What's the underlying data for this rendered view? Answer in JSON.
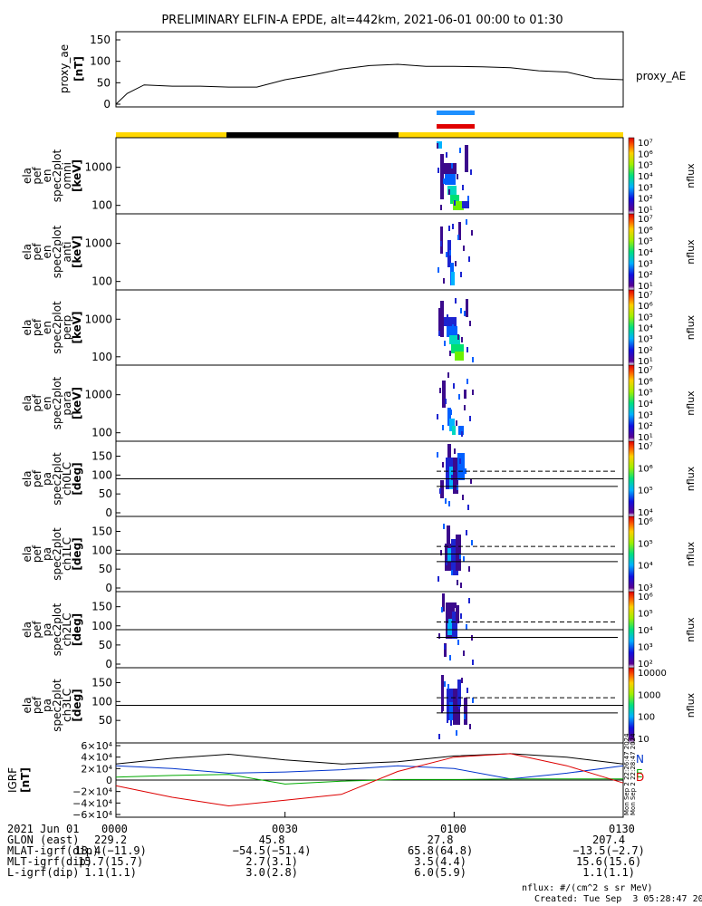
{
  "title": "PRELIMINARY ELFIN-A EPDE, alt=442km, 2021-06-01 00:00 to 01:30",
  "time_axis": {
    "ticks": [
      "0000",
      "0030",
      "0100",
      "0130"
    ],
    "date_label": "2021 Jun 01"
  },
  "panels": {
    "proxy_ae": {
      "ylabel": [
        "proxy_ae",
        "[nT]"
      ],
      "legend": "proxy_AE",
      "yticks": [
        "0",
        "50",
        "100",
        "150"
      ]
    },
    "energy_panels": [
      {
        "ylabel": [
          "ela",
          "pef",
          "en",
          "spec2plot",
          "omni",
          "[keV]"
        ],
        "yticks": [
          "100",
          "1000"
        ]
      },
      {
        "ylabel": [
          "ela",
          "pef",
          "en",
          "spec2plot",
          "anti",
          "[keV]"
        ],
        "yticks": [
          "100",
          "1000"
        ]
      },
      {
        "ylabel": [
          "ela",
          "pef",
          "en",
          "spec2plot",
          "perp",
          "[keV]"
        ],
        "yticks": [
          "100",
          "1000"
        ]
      },
      {
        "ylabel": [
          "ela",
          "pef",
          "en",
          "spec2plot",
          "para",
          "[keV]"
        ],
        "yticks": [
          "100",
          "1000"
        ]
      }
    ],
    "pa_panels": [
      {
        "ylabel": [
          "ela",
          "pef",
          "pa",
          "spec2plot",
          "ch0LC",
          "[deg]"
        ],
        "yticks": [
          "0",
          "50",
          "100",
          "150"
        ]
      },
      {
        "ylabel": [
          "ela",
          "pef",
          "pa",
          "spec2plot",
          "ch1LC",
          "[deg]"
        ],
        "yticks": [
          "0",
          "50",
          "100",
          "150"
        ]
      },
      {
        "ylabel": [
          "ela",
          "pef",
          "pa",
          "spec2plot",
          "ch2LC",
          "[deg]"
        ],
        "yticks": [
          "0",
          "50",
          "100",
          "150"
        ]
      },
      {
        "ylabel": [
          "ela",
          "pef",
          "pa",
          "spec2plot",
          "ch3LC",
          "[deg]"
        ],
        "yticks": [
          "50",
          "100",
          "150"
        ]
      }
    ],
    "igrf": {
      "ylabel": [
        "IGRF",
        "[nT]"
      ],
      "yticks": [
        "6×10⁴",
        "4×10⁴",
        "2×10⁴",
        "0",
        "−2×10⁴",
        "−4×10⁴",
        "−6×10⁴"
      ],
      "legend": [
        "N",
        "E",
        "D"
      ],
      "side_text": [
        "Mon Sep  2 22:26:47 2024",
        "Mon Sep  2 22:28:47 2024"
      ]
    }
  },
  "colorbars": [
    {
      "label": "nflux",
      "ticks": [
        "10⁷",
        "10⁶",
        "10⁵",
        "10⁴",
        "10³",
        "10²",
        "10¹"
      ]
    },
    {
      "label": "nflux",
      "ticks": [
        "10⁷",
        "10⁶",
        "10⁵",
        "10⁴",
        "10³",
        "10²",
        "10¹"
      ]
    },
    {
      "label": "nflux",
      "ticks": [
        "10⁷",
        "10⁶",
        "10⁵",
        "10⁴",
        "10³",
        "10²",
        "10¹"
      ]
    },
    {
      "label": "nflux",
      "ticks": [
        "10⁷",
        "10⁶",
        "10⁵",
        "10⁴",
        "10³",
        "10²",
        "10¹"
      ]
    },
    {
      "label": "nflux",
      "ticks": [
        "10⁷",
        "10⁶",
        "10⁵",
        "10⁴"
      ]
    },
    {
      "label": "nflux",
      "ticks": [
        "10⁶",
        "10⁵",
        "10⁴",
        "10³"
      ]
    },
    {
      "label": "nflux",
      "ticks": [
        "10⁶",
        "10⁵",
        "10⁴",
        "10³",
        "10²"
      ]
    },
    {
      "label": "nflux",
      "ticks": [
        "10000",
        "1000",
        "100",
        "10"
      ]
    }
  ],
  "bottom_table": {
    "rows": [
      {
        "label": "GLON (east)",
        "values": [
          "229.2",
          "45.8",
          "27.8",
          "207.4"
        ]
      },
      {
        "label": "MLAT-igrf(dip)",
        "values": [
          "18.4(−11.9)",
          "−54.5(−51.4)",
          "65.8(64.8)",
          "−13.5(−2.7)"
        ]
      },
      {
        "label": "MLT-igrf(dip)",
        "values": [
          "15.7(15.7)",
          "2.7(3.1)",
          "3.5(4.4)",
          "15.6(15.6)"
        ]
      },
      {
        "label": "L-igrf(dip)",
        "values": [
          "1.1(1.1)",
          "3.0(2.8)",
          "6.0(5.9)",
          "1.1(1.1)"
        ]
      }
    ]
  },
  "footer": {
    "units": "nflux: #/(cm^2 s sr MeV)",
    "created": "Created: Tue Sep  3 05:28:47 2024"
  },
  "colors": {
    "day_bar": "#ffd700",
    "night_bar": "#000000",
    "blue_marker": "#1e90ff",
    "red_marker": "#e00000",
    "igrf_total": "#000000",
    "igrf_n": "#0033cc",
    "igrf_e": "#00aa00",
    "igrf_d": "#dd0000"
  },
  "chart_data": [
    {
      "type": "line",
      "name": "proxy_AE",
      "x_minutes": [
        0,
        2,
        5,
        10,
        15,
        20,
        25,
        30,
        35,
        40,
        45,
        50,
        55,
        60,
        65,
        70,
        75,
        80,
        85,
        90
      ],
      "values": [
        0,
        25,
        45,
        42,
        42,
        40,
        40,
        57,
        68,
        82,
        90,
        93,
        88,
        88,
        87,
        85,
        78,
        75,
        60,
        57
      ],
      "ylim": [
        0,
        150
      ]
    },
    {
      "type": "heatmap",
      "name": "omni",
      "scale": "log",
      "yrange_keV": [
        60,
        6000
      ],
      "active_x_minutes": [
        59,
        64
      ]
    },
    {
      "type": "line",
      "name": "IGRF",
      "x_minutes": [
        0,
        10,
        20,
        30,
        40,
        50,
        60,
        70,
        80,
        90
      ],
      "series": [
        {
          "name": "total",
          "values": [
            28000,
            38000,
            45000,
            35000,
            28000,
            32000,
            42000,
            46000,
            40000,
            28000
          ]
        },
        {
          "name": "N",
          "values": [
            25000,
            20000,
            12000,
            14000,
            18000,
            25000,
            20000,
            2000,
            12000,
            25000
          ]
        },
        {
          "name": "E",
          "values": [
            5000,
            8000,
            10000,
            -7000,
            -2000,
            1000,
            1000,
            2000,
            2000,
            2000
          ]
        },
        {
          "name": "D",
          "values": [
            -10000,
            -30000,
            -45000,
            -35000,
            -25000,
            15000,
            40000,
            46000,
            25000,
            -5000
          ]
        }
      ],
      "ylim": [
        -60000,
        60000
      ]
    }
  ]
}
